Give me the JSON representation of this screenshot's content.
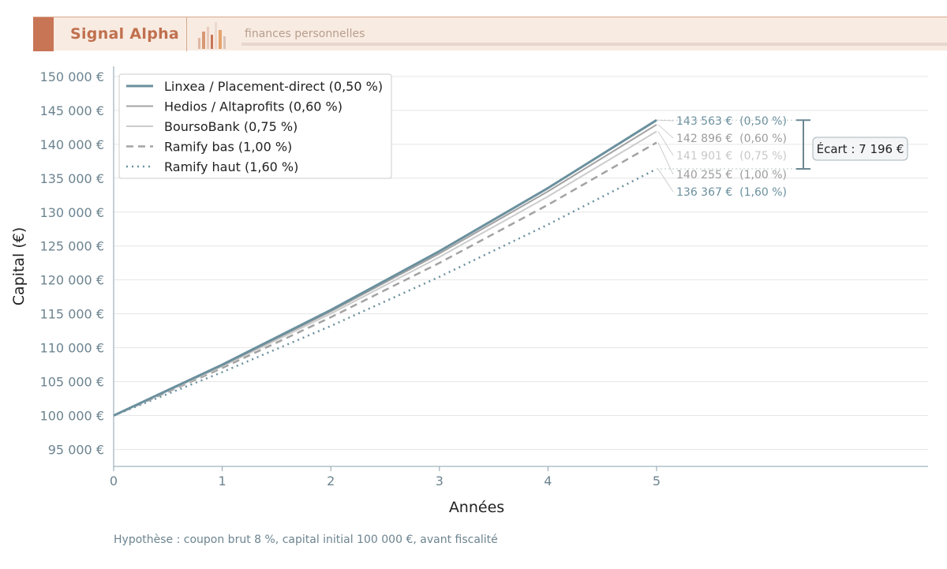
{
  "header": {
    "brand": "Signal Alpha",
    "subtitle": "finances personnelles",
    "colors": {
      "accent": "#c87556",
      "background": "#f8ebe2"
    }
  },
  "footer": {
    "note": "Hypothèse : coupon brut 8 %, capital initial 100 000 €, avant fiscalité"
  },
  "chart_data": {
    "type": "line",
    "xlabel": "Années",
    "ylabel": "Capital (€)",
    "xlim": [
      0,
      7.5
    ],
    "ylim": [
      92500,
      151500
    ],
    "x_ticks": [
      0,
      1,
      2,
      3,
      4,
      5
    ],
    "y_ticks": [
      95000,
      100000,
      105000,
      110000,
      115000,
      120000,
      125000,
      130000,
      135000,
      140000,
      145000,
      150000
    ],
    "y_tick_labels": [
      "95 000 €",
      "100 000 €",
      "105 000 €",
      "110 000 €",
      "115 000 €",
      "120 000 €",
      "125 000 €",
      "130 000 €",
      "135 000 €",
      "140 000 €",
      "145 000 €",
      "150 000 €"
    ],
    "grid": true,
    "legend_position": "top-left",
    "x": [
      0,
      1,
      2,
      3,
      4,
      5
    ],
    "series": [
      {
        "name": "Linxea / Placement-direct (0,50 %)",
        "color": "#6b909e",
        "style": "solid",
        "width": 3,
        "values": [
          100000,
          107500,
          115563,
          124230,
          133547,
          143563
        ],
        "end_label": "143 563 €  (0,50 %)"
      },
      {
        "name": "Hedios / Altaprofits (0,60 %)",
        "color": "#a3a3a3",
        "style": "solid",
        "width": 2,
        "values": [
          100000,
          107400,
          115348,
          123884,
          133052,
          142896
        ],
        "end_label": "142 896 €  (0,60 %)"
      },
      {
        "name": "BoursoBank (0,75 %)",
        "color": "#cccccc",
        "style": "solid",
        "width": 2,
        "values": [
          100000,
          107250,
          115026,
          123365,
          132309,
          141901
        ],
        "end_label": "141 901 €  (0,75 %)"
      },
      {
        "name": "Ramify bas (1,00 %)",
        "color": "#a3a3a3",
        "style": "dashed",
        "width": 2.5,
        "values": [
          100000,
          107000,
          114490,
          122504,
          131080,
          140255
        ],
        "end_label": "140 255 €  (1,00 %)"
      },
      {
        "name": "Ramify haut (1,60 %)",
        "color": "#6b909e",
        "style": "dotted",
        "width": 2.5,
        "values": [
          100000,
          106400,
          113210,
          120455,
          128164,
          136367
        ],
        "end_label": "136 367 €  (1,60 %)"
      }
    ],
    "annotation": {
      "text": "Écart : 7 196 €",
      "from": 143563,
      "to": 136367
    }
  }
}
